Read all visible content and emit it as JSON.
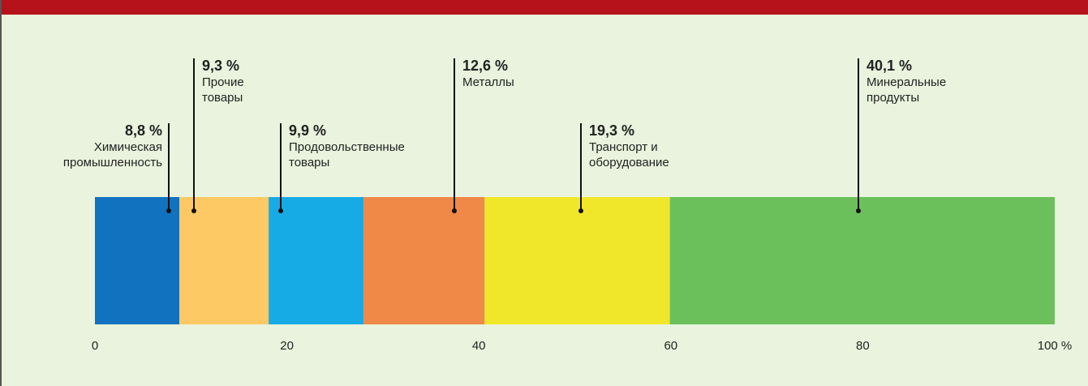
{
  "chart_data": {
    "type": "stacked-bar",
    "categories": [
      "Химическая промышленность",
      "Прочие товары",
      "Продовольственные товары",
      "Металлы",
      "Транспорт и оборудование",
      "Минеральные продукты"
    ],
    "values": [
      8.8,
      9.3,
      9.9,
      12.6,
      19.3,
      40.1
    ],
    "value_labels": [
      "8,8 %",
      "9,3 %",
      "9,9 %",
      "12,6 %",
      "19,3 %",
      "40,1 %"
    ],
    "colors": [
      "#1172c0",
      "#fcc964",
      "#17abe6",
      "#f08848",
      "#f1e72a",
      "#6cc05c"
    ],
    "xlim": [
      0,
      100
    ],
    "xticks": [
      0,
      20,
      40,
      60,
      80,
      {
        "value": 100,
        "label": "100 %"
      }
    ]
  }
}
